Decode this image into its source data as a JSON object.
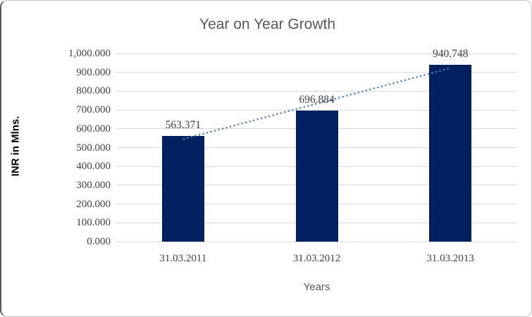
{
  "chart_data": {
    "type": "bar",
    "title": "Year on Year Growth",
    "xlabel": "Years",
    "ylabel": "INR in Mlns.",
    "categories": [
      "31.03.2011",
      "31.03.2012",
      "31.03.2013"
    ],
    "values": [
      563.371,
      696.884,
      940.748
    ],
    "data_labels": [
      "563.371",
      "696.884",
      "940.748"
    ],
    "ylim": [
      0,
      1000
    ],
    "ytick_step": 100,
    "ytick_labels": [
      "0.000",
      "100.000",
      "200.000",
      "300.000",
      "400.000",
      "500.000",
      "600.000",
      "700.000",
      "800.000",
      "900.000",
      "1,000.000"
    ],
    "grid": true,
    "legend": "none",
    "trendline": {
      "type": "linear",
      "style": "dotted",
      "color": "#4f81bd"
    },
    "colors": {
      "bar": "#002060",
      "gridline": "#d9d9d9",
      "title": "#595959",
      "tick_label": "#404040",
      "data_label": "#3f3f3f",
      "axis_title": "#595959",
      "y_axis_title": "#000000"
    }
  }
}
